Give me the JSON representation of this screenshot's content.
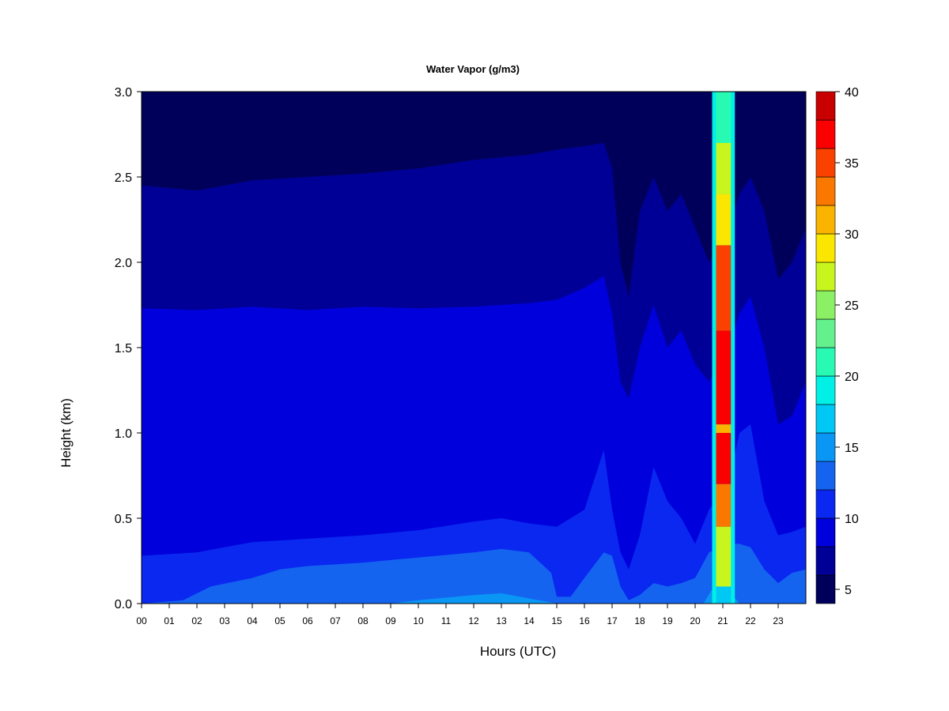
{
  "chart_data": {
    "type": "heatmap",
    "title": "Water Vapor (g/m3)",
    "xlabel": "Hours (UTC)",
    "ylabel": "Height (km)",
    "xlim": [
      0,
      24
    ],
    "ylim": [
      0,
      3.0
    ],
    "x_tick_labels": [
      "00",
      "01",
      "02",
      "03",
      "04",
      "05",
      "06",
      "07",
      "08",
      "09",
      "10",
      "11",
      "12",
      "13",
      "14",
      "15",
      "16",
      "17",
      "18",
      "19",
      "20",
      "21",
      "22",
      "23"
    ],
    "y_ticks": [
      0.0,
      0.5,
      1.0,
      1.5,
      2.0,
      2.5,
      3.0
    ],
    "y_tick_labels": [
      "0.0",
      "0.5",
      "1.0",
      "1.5",
      "2.0",
      "2.5",
      "3.0"
    ],
    "colorbar": {
      "range": [
        4,
        40
      ],
      "ticks": [
        5,
        10,
        15,
        20,
        25,
        30,
        35,
        40
      ],
      "tick_labels": [
        "5",
        "10",
        "15",
        "20",
        "25",
        "30",
        "35",
        "40"
      ],
      "levels": [
        4,
        6,
        8,
        10,
        12,
        14,
        16,
        18,
        20,
        22,
        24,
        26,
        28,
        30,
        32,
        34,
        36,
        38,
        40
      ],
      "colors": [
        "#00005a",
        "#000096",
        "#0000dc",
        "#0a28f0",
        "#1464f0",
        "#0a96f5",
        "#00c8f5",
        "#00f0e6",
        "#28fab4",
        "#64f08c",
        "#8cf064",
        "#c8f51e",
        "#fae600",
        "#fab400",
        "#fa7800",
        "#fa4100",
        "#fa0000",
        "#c80000",
        "#780000"
      ]
    },
    "layers": [
      {
        "value": 7,
        "profile": [
          [
            0,
            2.45
          ],
          [
            2,
            2.42
          ],
          [
            4,
            2.48
          ],
          [
            6,
            2.5
          ],
          [
            8,
            2.52
          ],
          [
            10,
            2.55
          ],
          [
            12,
            2.6
          ],
          [
            14,
            2.63
          ],
          [
            15,
            2.66
          ],
          [
            16,
            2.68
          ],
          [
            16.7,
            2.7
          ],
          [
            17,
            2.55
          ],
          [
            17.3,
            2.0
          ],
          [
            17.6,
            1.8
          ],
          [
            18,
            2.3
          ],
          [
            18.5,
            2.5
          ],
          [
            19,
            2.3
          ],
          [
            19.5,
            2.4
          ],
          [
            20,
            2.2
          ],
          [
            20.5,
            2.0
          ],
          [
            21.2,
            2.2
          ],
          [
            21.6,
            2.4
          ],
          [
            22,
            2.5
          ],
          [
            22.5,
            2.3
          ],
          [
            23,
            1.9
          ],
          [
            23.5,
            2.0
          ],
          [
            24,
            2.2
          ]
        ]
      },
      {
        "value": 9,
        "profile": [
          [
            0,
            1.73
          ],
          [
            2,
            1.72
          ],
          [
            4,
            1.74
          ],
          [
            6,
            1.72
          ],
          [
            8,
            1.74
          ],
          [
            10,
            1.73
          ],
          [
            12,
            1.74
          ],
          [
            14,
            1.76
          ],
          [
            15,
            1.78
          ],
          [
            16,
            1.85
          ],
          [
            16.7,
            1.92
          ],
          [
            17,
            1.7
          ],
          [
            17.3,
            1.3
          ],
          [
            17.6,
            1.2
          ],
          [
            18,
            1.5
          ],
          [
            18.5,
            1.75
          ],
          [
            19,
            1.5
          ],
          [
            19.5,
            1.6
          ],
          [
            20,
            1.4
          ],
          [
            20.5,
            1.3
          ],
          [
            21.2,
            1.5
          ],
          [
            21.6,
            1.7
          ],
          [
            22,
            1.8
          ],
          [
            22.5,
            1.5
          ],
          [
            23,
            1.05
          ],
          [
            23.5,
            1.1
          ],
          [
            24,
            1.3
          ]
        ]
      },
      {
        "value": 11,
        "profile": [
          [
            0,
            0.28
          ],
          [
            2,
            0.3
          ],
          [
            4,
            0.36
          ],
          [
            6,
            0.38
          ],
          [
            8,
            0.4
          ],
          [
            10,
            0.43
          ],
          [
            12,
            0.48
          ],
          [
            13,
            0.5
          ],
          [
            14,
            0.47
          ],
          [
            15,
            0.45
          ],
          [
            16,
            0.55
          ],
          [
            16.7,
            0.9
          ],
          [
            17,
            0.55
          ],
          [
            17.3,
            0.3
          ],
          [
            17.6,
            0.2
          ],
          [
            18,
            0.4
          ],
          [
            18.5,
            0.8
          ],
          [
            19,
            0.6
          ],
          [
            19.5,
            0.5
          ],
          [
            20,
            0.35
          ],
          [
            20.5,
            0.55
          ],
          [
            21.2,
            0.7
          ],
          [
            21.6,
            1.0
          ],
          [
            22,
            1.05
          ],
          [
            22.5,
            0.6
          ],
          [
            23,
            0.4
          ],
          [
            23.5,
            0.42
          ],
          [
            24,
            0.45
          ]
        ]
      },
      {
        "value": 13,
        "profile": [
          [
            0,
            0.0
          ],
          [
            1.5,
            0.02
          ],
          [
            2.5,
            0.1
          ],
          [
            4,
            0.15
          ],
          [
            5,
            0.2
          ],
          [
            6,
            0.22
          ],
          [
            8,
            0.24
          ],
          [
            10,
            0.27
          ],
          [
            12,
            0.3
          ],
          [
            13,
            0.32
          ],
          [
            14,
            0.3
          ],
          [
            14.8,
            0.18
          ],
          [
            15,
            0.04
          ],
          [
            15.5,
            0.04
          ],
          [
            16,
            0.15
          ],
          [
            16.7,
            0.3
          ],
          [
            17,
            0.28
          ],
          [
            17.3,
            0.1
          ],
          [
            17.6,
            0.02
          ],
          [
            18,
            0.05
          ],
          [
            18.5,
            0.12
          ],
          [
            19,
            0.1
          ],
          [
            19.5,
            0.12
          ],
          [
            20,
            0.15
          ],
          [
            20.5,
            0.3
          ],
          [
            21.2,
            0.35
          ],
          [
            21.6,
            0.35
          ],
          [
            22,
            0.33
          ],
          [
            22.5,
            0.2
          ],
          [
            23,
            0.12
          ],
          [
            23.5,
            0.18
          ],
          [
            24,
            0.2
          ]
        ]
      },
      {
        "value": 15,
        "profile": [
          [
            0,
            0
          ],
          [
            9,
            0
          ],
          [
            10,
            0.02
          ],
          [
            12,
            0.05
          ],
          [
            13,
            0.06
          ],
          [
            14,
            0.03
          ],
          [
            15,
            0
          ],
          [
            20.3,
            0
          ],
          [
            20.6,
            0.08
          ],
          [
            21,
            0.12
          ],
          [
            21.4,
            0.04
          ],
          [
            21.6,
            0
          ],
          [
            24,
            0
          ]
        ]
      }
    ],
    "moist_band": {
      "x_start": 20.7,
      "x_end": 21.35,
      "segments": [
        {
          "y0": 0.0,
          "y1": 0.1,
          "value": 17
        },
        {
          "y0": 0.1,
          "y1": 0.45,
          "value": 27
        },
        {
          "y0": 0.45,
          "y1": 0.7,
          "value": 33
        },
        {
          "y0": 0.7,
          "y1": 1.0,
          "value": 37
        },
        {
          "y0": 1.0,
          "y1": 1.05,
          "value": 31
        },
        {
          "y0": 1.05,
          "y1": 1.6,
          "value": 37
        },
        {
          "y0": 1.6,
          "y1": 2.1,
          "value": 35
        },
        {
          "y0": 2.1,
          "y1": 2.4,
          "value": 29
        },
        {
          "y0": 2.4,
          "y1": 2.7,
          "value": 27
        },
        {
          "y0": 2.7,
          "y1": 3.0,
          "value": 21
        }
      ],
      "edge_value": 19
    }
  }
}
